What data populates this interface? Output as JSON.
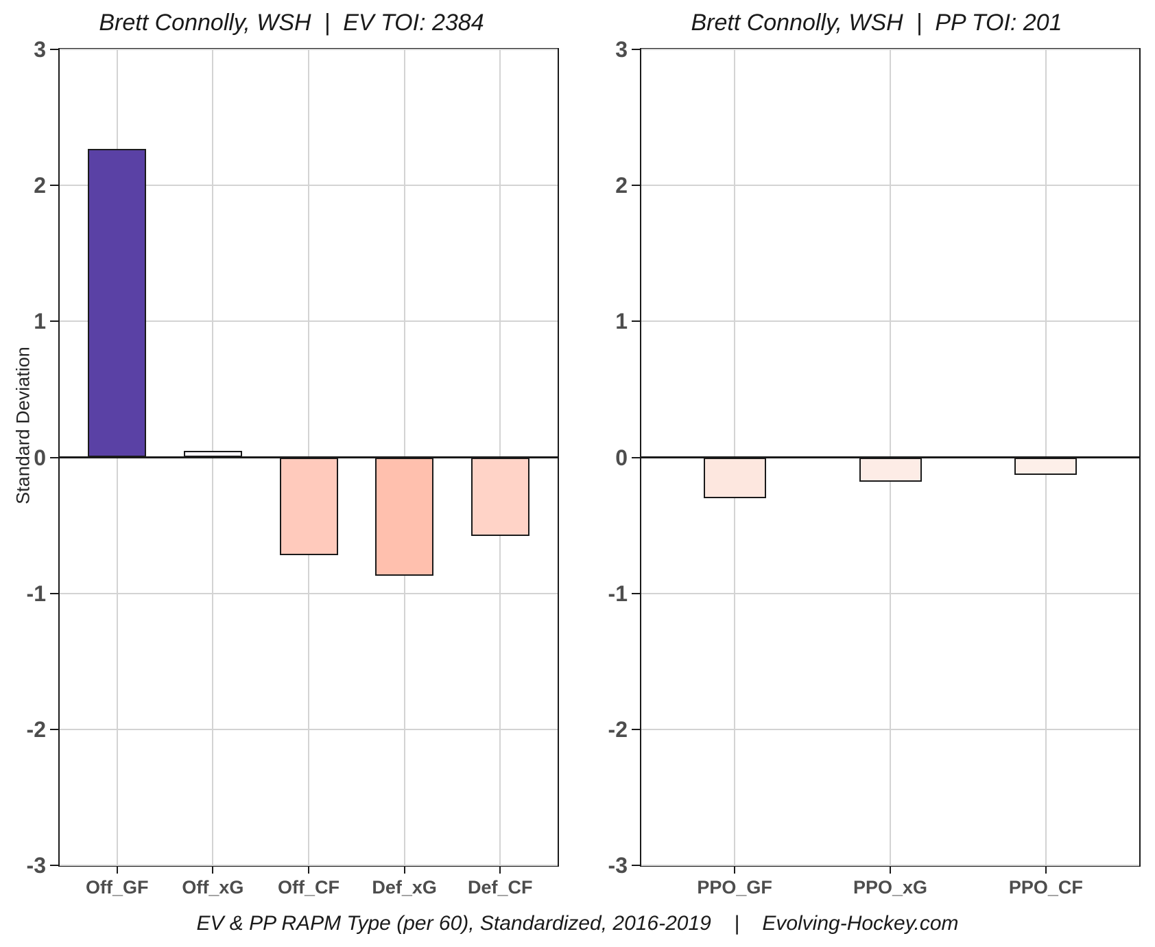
{
  "figure": {
    "ylabel": "Standard Deviation",
    "footer": "EV & PP RAPM Type (per 60), Standardized, 2016-2019    |    Evolving-Hockey.com",
    "background": "#ffffff",
    "grid_color": "#d3d3d3",
    "axis_color": "#1a1a1a",
    "tick_text_color": "#4d4d4d"
  },
  "chart_data": [
    {
      "type": "bar",
      "title": "Brett Connolly, WSH  |  EV TOI: 2384",
      "categories": [
        "Off_GF",
        "Off_xG",
        "Off_CF",
        "Def_xG",
        "Def_CF"
      ],
      "values": [
        2.27,
        0.05,
        -0.72,
        -0.87,
        -0.58
      ],
      "bar_colors": [
        "#5a41a5",
        "#f8f5fa",
        "#ffcabc",
        "#ffc0ae",
        "#ffd3c7"
      ],
      "bar_border_color": "#1a1a1a",
      "ylabel": "Standard Deviation",
      "xlabel": "",
      "ylim": [
        -3,
        3
      ],
      "yticks": [
        "3",
        "2",
        "1",
        "0",
        "-1",
        "-2",
        "-3"
      ],
      "grid": "major-on",
      "legend": "none",
      "zero_line": true
    },
    {
      "type": "bar",
      "title": "Brett Connolly, WSH  |  PP TOI: 201",
      "categories": [
        "PPO_GF",
        "PPO_xG",
        "PPO_CF"
      ],
      "values": [
        -0.3,
        -0.18,
        -0.13
      ],
      "bar_colors": [
        "#fde7df",
        "#fdece6",
        "#fdefe9"
      ],
      "bar_border_color": "#1a1a1a",
      "ylabel": "",
      "xlabel": "",
      "ylim": [
        -3,
        3
      ],
      "yticks": [
        "3",
        "2",
        "1",
        "0",
        "-1",
        "-2",
        "-3"
      ],
      "grid": "major-on",
      "legend": "none",
      "zero_line": true
    }
  ]
}
